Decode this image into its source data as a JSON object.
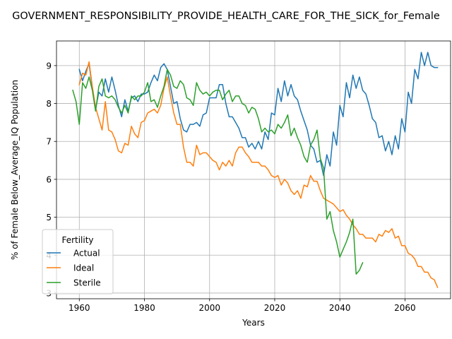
{
  "chart_data": {
    "type": "line",
    "title": "GOVERNMENT_RESPONSIBILITY_PROVIDE_HEALTH_CARE_FOR_THE_SICK_for_Female",
    "xlabel": "Years",
    "ylabel": "% of Female Below_Average_IQ Population",
    "xlim": [
      1953,
      2074
    ],
    "ylim": [
      2.85,
      9.65
    ],
    "xticks": [
      1960,
      1980,
      2000,
      2020,
      2040,
      2060
    ],
    "yticks": [
      3,
      4,
      5,
      6,
      7,
      8,
      9
    ],
    "grid": true,
    "legend": {
      "title": "Fertility",
      "position": "lower-left"
    },
    "series": [
      {
        "name": "Actual",
        "color": "#1f77b4",
        "x": [
          1960,
          1961,
          1962,
          1963,
          1964,
          1965,
          1966,
          1967,
          1968,
          1969,
          1970,
          1971,
          1972,
          1973,
          1974,
          1975,
          1976,
          1977,
          1978,
          1979,
          1980,
          1981,
          1982,
          1983,
          1984,
          1985,
          1986,
          1987,
          1988,
          1989,
          1990,
          1991,
          1992,
          1993,
          1994,
          1995,
          1996,
          1997,
          1998,
          1999,
          2000,
          2001,
          2002,
          2003,
          2004,
          2005,
          2006,
          2007,
          2008,
          2009,
          2010,
          2011,
          2012,
          2013,
          2014,
          2015,
          2016,
          2017,
          2018,
          2019,
          2020,
          2021,
          2022,
          2023,
          2024,
          2025,
          2026,
          2027,
          2028,
          2029,
          2030,
          2031,
          2032,
          2033,
          2034,
          2035,
          2036,
          2037,
          2038,
          2039,
          2040,
          2041,
          2042,
          2043,
          2044,
          2045,
          2046,
          2047,
          2048,
          2049,
          2050,
          2051,
          2052,
          2053,
          2054,
          2055,
          2056,
          2057,
          2058,
          2059,
          2060,
          2061,
          2062,
          2063,
          2064,
          2065,
          2066,
          2067,
          2068,
          2069,
          2070
        ],
        "values": [
          8.9,
          8.6,
          8.85,
          9.05,
          8.4,
          7.85,
          8.3,
          8.2,
          8.65,
          8.3,
          8.7,
          8.35,
          7.95,
          7.65,
          8.1,
          7.8,
          8.15,
          8.2,
          8.05,
          8.25,
          8.25,
          8.3,
          8.55,
          8.75,
          8.6,
          8.95,
          9.05,
          8.9,
          8.45,
          8.0,
          8.05,
          7.6,
          7.3,
          7.25,
          7.45,
          7.45,
          7.5,
          7.4,
          7.7,
          7.75,
          8.15,
          8.15,
          8.15,
          8.5,
          8.5,
          8.0,
          7.65,
          7.65,
          7.5,
          7.35,
          7.1,
          7.1,
          6.85,
          6.95,
          6.8,
          7.0,
          6.8,
          7.25,
          7.05,
          7.75,
          7.7,
          8.4,
          8.05,
          8.6,
          8.2,
          8.5,
          8.2,
          8.1,
          7.8,
          7.55,
          7.3,
          6.9,
          6.8,
          6.45,
          6.5,
          6.1,
          6.65,
          6.35,
          7.25,
          6.9,
          7.95,
          7.65,
          8.55,
          8.15,
          8.75,
          8.4,
          8.7,
          8.35,
          8.25,
          7.95,
          7.6,
          7.5,
          7.1,
          7.15,
          6.75,
          7.0,
          6.65,
          7.15,
          6.8,
          7.6,
          7.25,
          8.3,
          8.0,
          8.9,
          8.65,
          9.35,
          9.0,
          9.35,
          9.0,
          8.95,
          8.95
        ]
      },
      {
        "name": "Ideal",
        "color": "#ff7f0e",
        "x": [
          1960,
          1961,
          1962,
          1963,
          1964,
          1965,
          1966,
          1967,
          1968,
          1969,
          1970,
          1971,
          1972,
          1973,
          1974,
          1975,
          1976,
          1977,
          1978,
          1979,
          1980,
          1981,
          1982,
          1983,
          1984,
          1985,
          1986,
          1987,
          1988,
          1989,
          1990,
          1991,
          1992,
          1993,
          1994,
          1995,
          1996,
          1997,
          1998,
          1999,
          2000,
          2001,
          2002,
          2003,
          2004,
          2005,
          2006,
          2007,
          2008,
          2009,
          2010,
          2011,
          2012,
          2013,
          2014,
          2015,
          2016,
          2017,
          2018,
          2019,
          2020,
          2021,
          2022,
          2023,
          2024,
          2025,
          2026,
          2027,
          2028,
          2029,
          2030,
          2031,
          2032,
          2033,
          2034,
          2035,
          2036,
          2037,
          2038,
          2039,
          2040,
          2041,
          2042,
          2043,
          2044,
          2045,
          2046,
          2047,
          2048,
          2049,
          2050,
          2051,
          2052,
          2053,
          2054,
          2055,
          2056,
          2057,
          2058,
          2059,
          2060,
          2061,
          2062,
          2063,
          2064,
          2065,
          2066,
          2067,
          2068,
          2069,
          2070
        ],
        "values": [
          8.5,
          8.8,
          8.75,
          9.1,
          8.45,
          7.9,
          7.6,
          7.3,
          8.05,
          7.3,
          7.25,
          7.05,
          6.75,
          6.7,
          6.95,
          6.9,
          7.4,
          7.2,
          7.1,
          7.5,
          7.55,
          7.75,
          7.8,
          7.85,
          7.75,
          7.95,
          8.4,
          8.7,
          8.2,
          7.75,
          7.45,
          7.45,
          6.85,
          6.45,
          6.45,
          6.35,
          6.9,
          6.65,
          6.7,
          6.7,
          6.6,
          6.5,
          6.45,
          6.25,
          6.45,
          6.35,
          6.5,
          6.35,
          6.7,
          6.85,
          6.85,
          6.7,
          6.6,
          6.45,
          6.45,
          6.45,
          6.35,
          6.35,
          6.25,
          6.1,
          6.05,
          6.1,
          5.85,
          6.0,
          5.9,
          5.7,
          5.6,
          5.7,
          5.5,
          5.85,
          5.8,
          6.1,
          5.95,
          5.95,
          5.7,
          5.5,
          5.45,
          5.4,
          5.35,
          5.25,
          5.15,
          5.2,
          5.05,
          4.95,
          4.8,
          4.7,
          4.55,
          4.55,
          4.45,
          4.45,
          4.45,
          4.35,
          4.55,
          4.5,
          4.65,
          4.6,
          4.7,
          4.45,
          4.5,
          4.25,
          4.25,
          4.05,
          4.0,
          3.9,
          3.7,
          3.7,
          3.55,
          3.55,
          3.4,
          3.35,
          3.15
        ]
      },
      {
        "name": "Sterile",
        "color": "#2ca02c",
        "x": [
          1958,
          1959,
          1960,
          1961,
          1962,
          1963,
          1964,
          1965,
          1966,
          1967,
          1968,
          1969,
          1970,
          1971,
          1972,
          1973,
          1974,
          1975,
          1976,
          1977,
          1978,
          1979,
          1980,
          1981,
          1982,
          1983,
          1984,
          1985,
          1986,
          1987,
          1988,
          1989,
          1990,
          1991,
          1992,
          1993,
          1994,
          1995,
          1996,
          1997,
          1998,
          1999,
          2000,
          2001,
          2002,
          2003,
          2004,
          2005,
          2006,
          2007,
          2008,
          2009,
          2010,
          2011,
          2012,
          2013,
          2014,
          2015,
          2016,
          2017,
          2018,
          2019,
          2020,
          2021,
          2022,
          2023,
          2024,
          2025,
          2026,
          2027,
          2028,
          2029,
          2030,
          2031,
          2032,
          2033,
          2034,
          2035,
          2036,
          2037,
          2038,
          2039,
          2040,
          2041,
          2042,
          2043,
          2044,
          2045,
          2046,
          2047
        ],
        "values": [
          8.35,
          8.05,
          7.45,
          8.55,
          8.4,
          8.7,
          8.35,
          7.8,
          8.45,
          8.65,
          8.2,
          8.15,
          8.2,
          8.1,
          7.9,
          7.75,
          7.95,
          7.75,
          8.2,
          8.1,
          8.2,
          8.2,
          8.3,
          8.55,
          8.05,
          8.1,
          7.9,
          8.2,
          8.45,
          8.9,
          8.75,
          8.45,
          8.4,
          8.6,
          8.5,
          8.15,
          8.1,
          7.95,
          8.55,
          8.35,
          8.25,
          8.3,
          8.2,
          8.3,
          8.35,
          8.35,
          8.1,
          8.25,
          8.35,
          8.05,
          8.2,
          8.2,
          8.0,
          7.95,
          7.75,
          7.9,
          7.85,
          7.6,
          7.25,
          7.35,
          7.25,
          7.3,
          7.2,
          7.45,
          7.35,
          7.5,
          7.7,
          7.15,
          7.35,
          7.1,
          6.9,
          6.6,
          6.45,
          6.9,
          7.05,
          7.3,
          6.55,
          6.3,
          4.95,
          5.15,
          4.65,
          4.35,
          3.95,
          4.15,
          4.35,
          4.6,
          4.95,
          3.5,
          3.6,
          3.8
        ]
      }
    ]
  }
}
